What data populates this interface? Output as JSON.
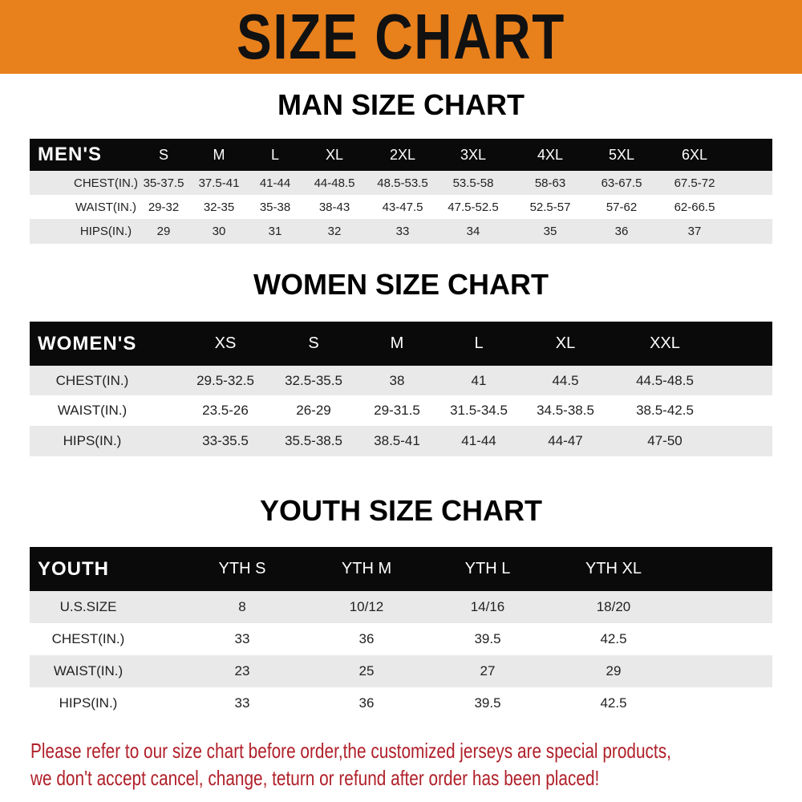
{
  "banner": {
    "title": "SIZE CHART",
    "color": "#e8801c"
  },
  "men": {
    "title": "MAN SIZE CHART",
    "header": [
      "MEN'S",
      "S",
      "M",
      "L",
      "XL",
      "2XL",
      "3XL",
      "4XL",
      "5XL",
      "6XL"
    ],
    "rows": [
      [
        "CHEST(IN.)",
        "35-37.5",
        "37.5-41",
        "41-44",
        "44-48.5",
        "48.5-53.5",
        "53.5-58",
        "58-63",
        "63-67.5",
        "67.5-72"
      ],
      [
        "WAIST(IN.)",
        "29-32",
        "32-35",
        "35-38",
        "38-43",
        "43-47.5",
        "47.5-52.5",
        "52.5-57",
        "57-62",
        "62-66.5"
      ],
      [
        "HIPS(IN.)",
        "29",
        "30",
        "31",
        "32",
        "33",
        "34",
        "35",
        "36",
        "37"
      ]
    ]
  },
  "women": {
    "title": "WOMEN SIZE CHART",
    "header": [
      "WOMEN'S",
      "XS",
      "S",
      "M",
      "L",
      "XL",
      "XXL"
    ],
    "rows": [
      [
        "CHEST(IN.)",
        "29.5-32.5",
        "32.5-35.5",
        "38",
        "41",
        "44.5",
        "44.5-48.5"
      ],
      [
        "WAIST(IN.)",
        "23.5-26",
        "26-29",
        "29-31.5",
        "31.5-34.5",
        "34.5-38.5",
        "38.5-42.5"
      ],
      [
        "HIPS(IN.)",
        "33-35.5",
        "35.5-38.5",
        "38.5-41",
        "41-44",
        "44-47",
        "47-50"
      ]
    ]
  },
  "youth": {
    "title": "YOUTH SIZE CHART",
    "header": [
      "YOUTH",
      "YTH S",
      "YTH M",
      "YTH L",
      "YTH XL"
    ],
    "rows": [
      [
        "U.S.SIZE",
        "8",
        "10/12",
        "14/16",
        "18/20"
      ],
      [
        "CHEST(IN.)",
        "33",
        "36",
        "39.5",
        "42.5"
      ],
      [
        "WAIST(IN.)",
        "23",
        "25",
        "27",
        "29"
      ],
      [
        "HIPS(IN.)",
        "33",
        "36",
        "39.5",
        "42.5"
      ]
    ]
  },
  "notice": {
    "line1": "Please refer to our size chart before order,the customized jerseys are special products,",
    "line2": "we don't accept cancel, change, teturn or refund after order has been placed!",
    "color": "#b0202a"
  }
}
